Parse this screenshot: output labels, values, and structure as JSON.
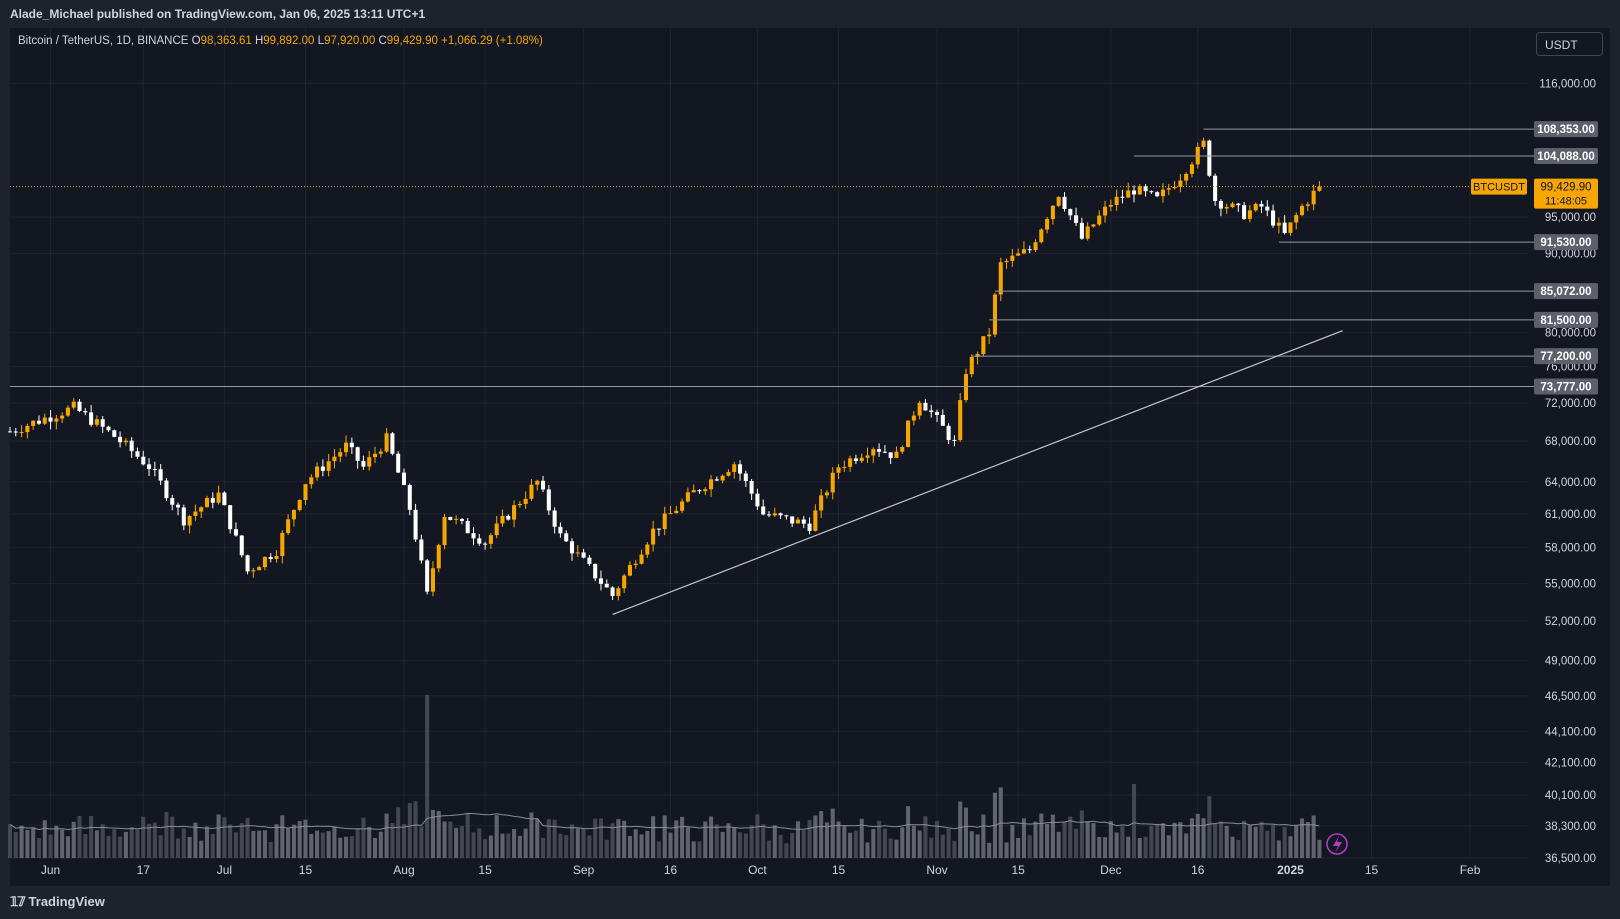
{
  "header": {
    "published_line": "Alade_Michael published on TradingView.com, Jan 06, 2025 13:11 UTC+1"
  },
  "legend": {
    "instrument": "Bitcoin / TetherUS, 1D, BINANCE",
    "open_key": "O",
    "open": "98,363.61",
    "high_key": "H",
    "high": "99,892.00",
    "low_key": "L",
    "low": "97,920.00",
    "close_key": "C",
    "close": "99,429.90",
    "change": "+1,066.29 (+1.08%)"
  },
  "currency_button": "USDT",
  "brand": "TradingView",
  "colors": {
    "background": "#131722",
    "up": "#f7a600",
    "down": "#ffffff",
    "grid": "#1f2430",
    "axis_text": "#d1d4dc",
    "level_line": "#9598a1",
    "price_line": "#f7a600"
  },
  "chart_data": {
    "type": "candlestick",
    "symbol": "BTCUSDT",
    "timeframe": "1D",
    "x_range": [
      "2024-05-25",
      "2025-02-11"
    ],
    "price_range": [
      36500,
      126000
    ],
    "price_scale": "log",
    "grid": true,
    "y_ticks": [
      "116,000.00",
      "95,000.00",
      "90,000.00",
      "80,000.00",
      "76,000.00",
      "72,000.00",
      "68,000.00",
      "64,000.00",
      "61,000.00",
      "58,000.00",
      "55,000.00",
      "52,000.00",
      "49,000.00",
      "46,500.00",
      "44,100.00",
      "42,100.00",
      "40,100.00",
      "38,300.00",
      "36,500.00"
    ],
    "x_ticks": [
      {
        "label": "Jun",
        "date": "2024-06-01"
      },
      {
        "label": "17",
        "date": "2024-06-17"
      },
      {
        "label": "Jul",
        "date": "2024-07-01"
      },
      {
        "label": "15",
        "date": "2024-07-15"
      },
      {
        "label": "Aug",
        "date": "2024-08-01"
      },
      {
        "label": "15",
        "date": "2024-08-15"
      },
      {
        "label": "Sep",
        "date": "2024-09-01"
      },
      {
        "label": "16",
        "date": "2024-09-16"
      },
      {
        "label": "Oct",
        "date": "2024-10-01"
      },
      {
        "label": "15",
        "date": "2024-10-15"
      },
      {
        "label": "Nov",
        "date": "2024-11-01"
      },
      {
        "label": "15",
        "date": "2024-11-15"
      },
      {
        "label": "Dec",
        "date": "2024-12-01"
      },
      {
        "label": "16",
        "date": "2024-12-16"
      },
      {
        "label": "2025",
        "date": "2025-01-01"
      },
      {
        "label": "15",
        "date": "2025-01-15"
      },
      {
        "label": "Feb",
        "date": "2025-02-01"
      }
    ],
    "current_price": {
      "label": "BTCUSDT",
      "value": 99429.9,
      "value_text": "99,429.90",
      "countdown": "11:48:05"
    },
    "levels": [
      {
        "value": 108353,
        "text": "108,353.00",
        "from": "2024-12-17"
      },
      {
        "value": 104088,
        "text": "104,088.00",
        "from": "2024-12-05"
      },
      {
        "value": 91530,
        "text": "91,530.00",
        "from": "2024-12-30"
      },
      {
        "value": 85072,
        "text": "85,072.00",
        "from": "2024-11-11"
      },
      {
        "value": 81500,
        "text": "81,500.00",
        "from": "2024-11-10"
      },
      {
        "value": 77200,
        "text": "77,200.00",
        "from": "2024-11-07"
      },
      {
        "value": 73777,
        "text": "73,777.00",
        "from": "2024-05-25"
      }
    ],
    "trendline": {
      "start": {
        "date": "2024-09-06",
        "price": 52500
      },
      "end": {
        "date": "2025-01-10",
        "price": 80200
      }
    },
    "anchors": [
      {
        "date": "2024-05-25",
        "price": 69000
      },
      {
        "date": "2024-06-05",
        "price": 71500
      },
      {
        "date": "2024-06-12",
        "price": 68500
      },
      {
        "date": "2024-06-18",
        "price": 65500
      },
      {
        "date": "2024-06-24",
        "price": 60500
      },
      {
        "date": "2024-06-30",
        "price": 62800
      },
      {
        "date": "2024-07-05",
        "price": 56000
      },
      {
        "date": "2024-07-10",
        "price": 57800
      },
      {
        "date": "2024-07-15",
        "price": 64000
      },
      {
        "date": "2024-07-22",
        "price": 67500
      },
      {
        "date": "2024-07-25",
        "price": 65400
      },
      {
        "date": "2024-07-29",
        "price": 68200
      },
      {
        "date": "2024-08-02",
        "price": 61500
      },
      {
        "date": "2024-08-05",
        "price": 54000
      },
      {
        "date": "2024-08-08",
        "price": 61000
      },
      {
        "date": "2024-08-15",
        "price": 58500
      },
      {
        "date": "2024-08-24",
        "price": 64000
      },
      {
        "date": "2024-08-28",
        "price": 59000
      },
      {
        "date": "2024-09-06",
        "price": 54000
      },
      {
        "date": "2024-09-13",
        "price": 59500
      },
      {
        "date": "2024-09-20",
        "price": 63000
      },
      {
        "date": "2024-09-27",
        "price": 65800
      },
      {
        "date": "2024-10-02",
        "price": 61000
      },
      {
        "date": "2024-10-10",
        "price": 60000
      },
      {
        "date": "2024-10-15",
        "price": 65500
      },
      {
        "date": "2024-10-21",
        "price": 67500
      },
      {
        "date": "2024-10-25",
        "price": 66500
      },
      {
        "date": "2024-10-29",
        "price": 72500
      },
      {
        "date": "2024-11-04",
        "price": 67800
      },
      {
        "date": "2024-11-06",
        "price": 75600
      },
      {
        "date": "2024-11-10",
        "price": 80000
      },
      {
        "date": "2024-11-12",
        "price": 88500
      },
      {
        "date": "2024-11-17",
        "price": 90500
      },
      {
        "date": "2024-11-22",
        "price": 98500
      },
      {
        "date": "2024-11-26",
        "price": 92000
      },
      {
        "date": "2024-12-01",
        "price": 97000
      },
      {
        "date": "2024-12-05",
        "price": 99000
      },
      {
        "date": "2024-12-09",
        "price": 97500
      },
      {
        "date": "2024-12-13",
        "price": 101000
      },
      {
        "date": "2024-12-17",
        "price": 106000
      },
      {
        "date": "2024-12-19",
        "price": 97500
      },
      {
        "date": "2024-12-24",
        "price": 95500
      },
      {
        "date": "2024-12-27",
        "price": 96500
      },
      {
        "date": "2024-12-31",
        "price": 92500
      },
      {
        "date": "2025-01-03",
        "price": 96500
      },
      {
        "date": "2025-01-06",
        "price": 99429
      }
    ],
    "volume_spikes": [
      {
        "date": "2024-08-05",
        "ratio": 0.97
      },
      {
        "date": "2024-11-12",
        "ratio": 0.42
      },
      {
        "date": "2024-12-05",
        "ratio": 0.44
      },
      {
        "date": "2024-11-06",
        "ratio": 0.3
      }
    ]
  }
}
